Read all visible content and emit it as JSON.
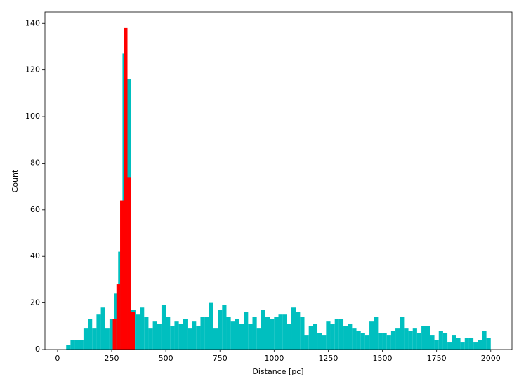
{
  "chart_data": {
    "type": "histogram",
    "x_label": "Distance [pc]",
    "y_label": "Count",
    "xlim": [
      -58,
      2098
    ],
    "ylim": [
      0,
      144.9
    ],
    "xticks": [
      0,
      250,
      500,
      750,
      1000,
      1250,
      1500,
      1750,
      2000
    ],
    "yticks": [
      0,
      20,
      40,
      60,
      80,
      100,
      120,
      140
    ],
    "grid": false,
    "series": [
      {
        "color": "#00bfbf",
        "bins": [
          40,
          60,
          80,
          100,
          120,
          140,
          160,
          180,
          200,
          220,
          240,
          260,
          280,
          300,
          320,
          340,
          360,
          380,
          400,
          420,
          440,
          460,
          480,
          500,
          520,
          540,
          560,
          580,
          600,
          620,
          640,
          660,
          680,
          700,
          720,
          740,
          760,
          780,
          800,
          820,
          840,
          860,
          880,
          900,
          920,
          940,
          960,
          980,
          1000,
          1020,
          1040,
          1060,
          1080,
          1100,
          1120,
          1140,
          1160,
          1180,
          1200,
          1220,
          1240,
          1260,
          1280,
          1300,
          1320,
          1340,
          1360,
          1380,
          1400,
          1420,
          1440,
          1460,
          1480,
          1500,
          1520,
          1540,
          1560,
          1580,
          1600,
          1620,
          1640,
          1660,
          1680,
          1700,
          1720,
          1740,
          1760,
          1780,
          1800,
          1820,
          1840,
          1860,
          1880,
          1900,
          1920,
          1940,
          1960,
          1980,
          2000
        ],
        "values": [
          2,
          4,
          4,
          4,
          9,
          13,
          9,
          15,
          18,
          9,
          13,
          24,
          42,
          127,
          116,
          17,
          15,
          18,
          14,
          9,
          12,
          11,
          19,
          14,
          10,
          12,
          11,
          13,
          9,
          12,
          10,
          14,
          14,
          20,
          9,
          17,
          19,
          14,
          12,
          13,
          11,
          16,
          11,
          14,
          9,
          17,
          14,
          13,
          14,
          15,
          15,
          11,
          18,
          16,
          14,
          6,
          10,
          11,
          7,
          6,
          12,
          11,
          13,
          13,
          10,
          11,
          9,
          8,
          7,
          6,
          12,
          14,
          7,
          7,
          6,
          8,
          9,
          14,
          9,
          8,
          9,
          7,
          10,
          10,
          6,
          4,
          8,
          7,
          3,
          6,
          5,
          3,
          5,
          5,
          3,
          4,
          8,
          5
        ]
      },
      {
        "color": "#ff0000",
        "bins": [
          255,
          272,
          289,
          306,
          323,
          340,
          357
        ],
        "values": [
          13,
          28,
          64,
          138,
          74,
          16
        ]
      }
    ]
  }
}
